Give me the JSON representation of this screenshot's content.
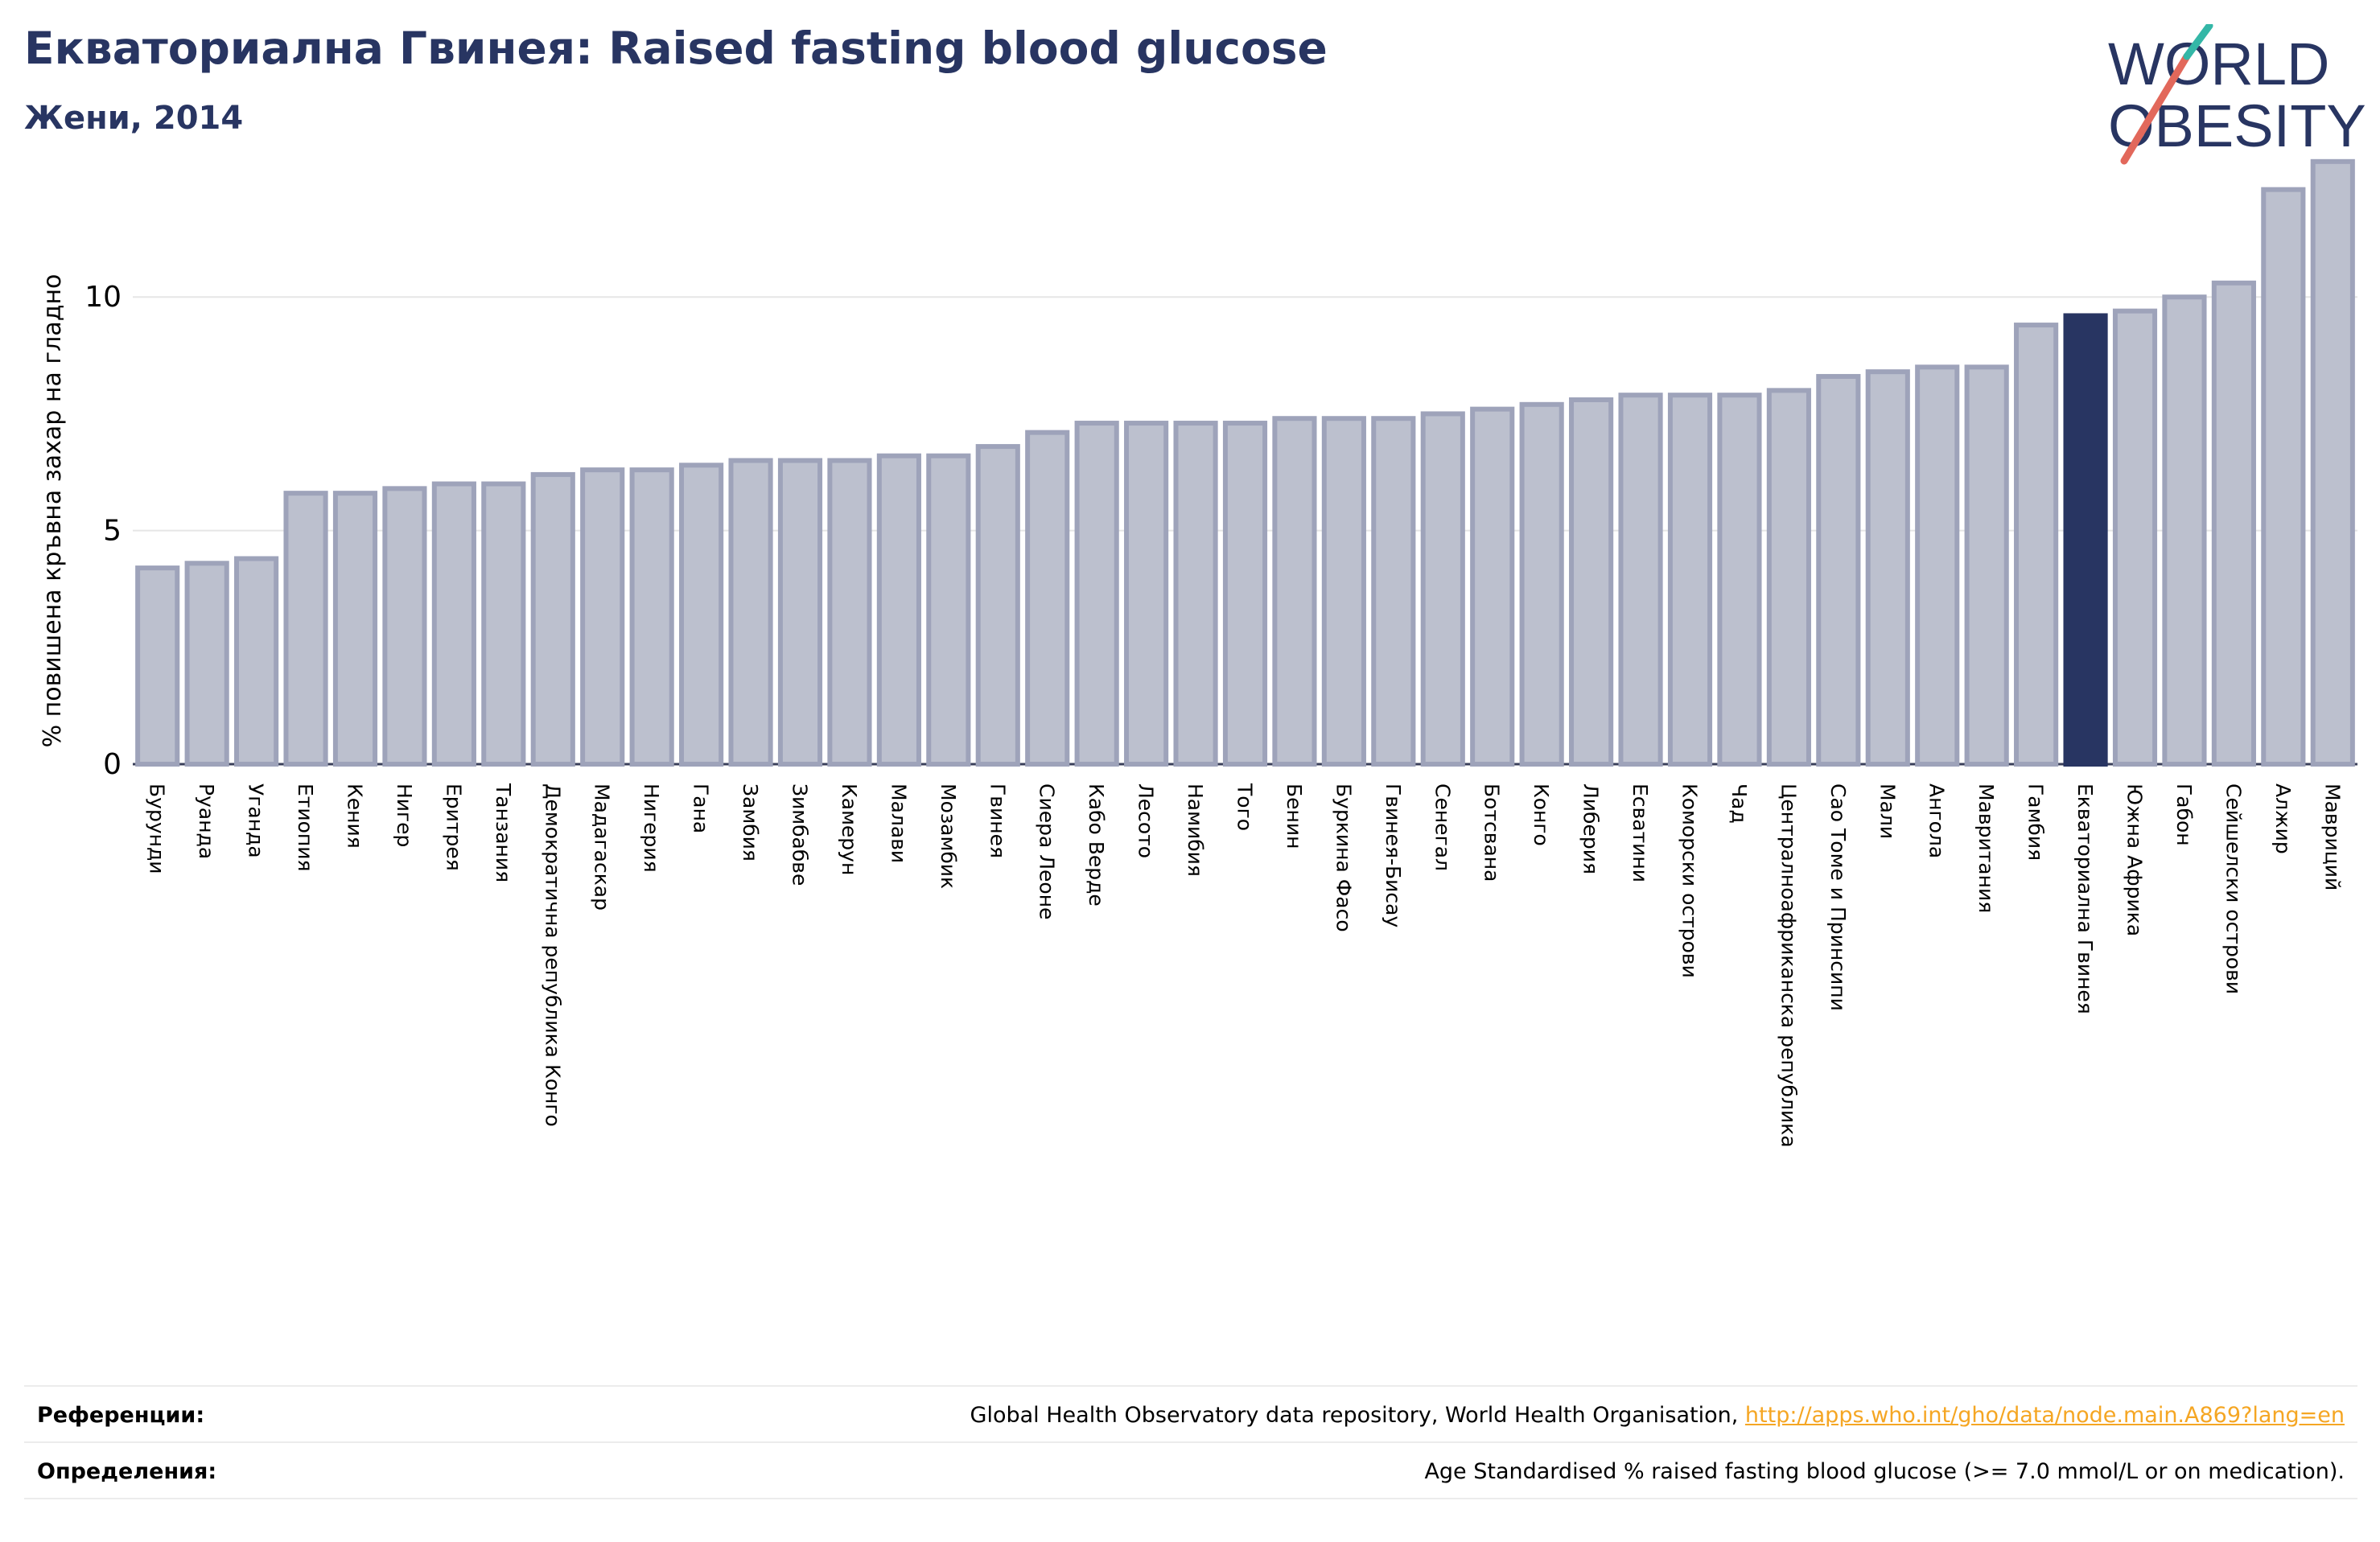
{
  "header": {
    "title": "Екваториална Гвинея: Raised fasting blood glucose",
    "subtitle": "Жени, 2014"
  },
  "logo": {
    "line1": "WORLD",
    "line2": "OBESITY"
  },
  "footer": {
    "references_label": "Референции:",
    "references_text": "Global Health Observatory data repository, World Health Organisation, ",
    "references_link": "http://apps.who.int/gho/data/node.main.A869?lang=en",
    "definitions_label": "Определения:",
    "definitions_text": "Age Standardised % raised fasting blood glucose (>= 7.0 mmol/L or on medication)."
  },
  "colors": {
    "bar_fill": "#bcc0ce",
    "bar_stroke": "#9ea3ba",
    "highlight": "#283562",
    "title": "#283562",
    "grid": "#e6e6e6",
    "link": "#f5a623"
  },
  "chart_data": {
    "type": "bar",
    "ylabel": "% повишена кръвна захар на гладно",
    "ylim": [
      0,
      13
    ],
    "yticks": [
      0,
      5,
      10
    ],
    "grid": true,
    "highlight": "Екваториална Гвинея",
    "categories": [
      "Бурунди",
      "Руанда",
      "Уганда",
      "Етиопия",
      "Кения",
      "Нигер",
      "Еритрея",
      "Танзания",
      "Демократична република Конго",
      "Мадагаскар",
      "Нигерия",
      "Гана",
      "Замбия",
      "Зимбабве",
      "Камерун",
      "Малави",
      "Мозамбик",
      "Гвинея",
      "Сиера Леоне",
      "Кабо Верде",
      "Лесото",
      "Намибия",
      "Того",
      "Бенин",
      "Буркина Фасо",
      "Гвинея-Бисау",
      "Сенегал",
      "Ботсвана",
      "Конго",
      "Либерия",
      "Есватини",
      "Коморски острови",
      "Чад",
      "Централноафриканска република",
      "Сао Томе и Принсипи",
      "Мали",
      "Ангола",
      "Мавритания",
      "Гамбия",
      "Екваториална Гвинея",
      "Южна Африка",
      "Габон",
      "Сейшелски острови",
      "Алжир",
      "Мавриций"
    ],
    "values": [
      4.2,
      4.3,
      4.4,
      5.8,
      5.8,
      5.9,
      6.0,
      6.0,
      6.2,
      6.3,
      6.3,
      6.4,
      6.5,
      6.5,
      6.5,
      6.6,
      6.6,
      6.8,
      7.1,
      7.3,
      7.3,
      7.3,
      7.3,
      7.4,
      7.4,
      7.4,
      7.5,
      7.6,
      7.7,
      7.8,
      7.9,
      7.9,
      7.9,
      8.0,
      8.3,
      8.4,
      8.5,
      8.5,
      9.4,
      9.6,
      9.7,
      10.0,
      10.3,
      12.3,
      12.9
    ]
  }
}
